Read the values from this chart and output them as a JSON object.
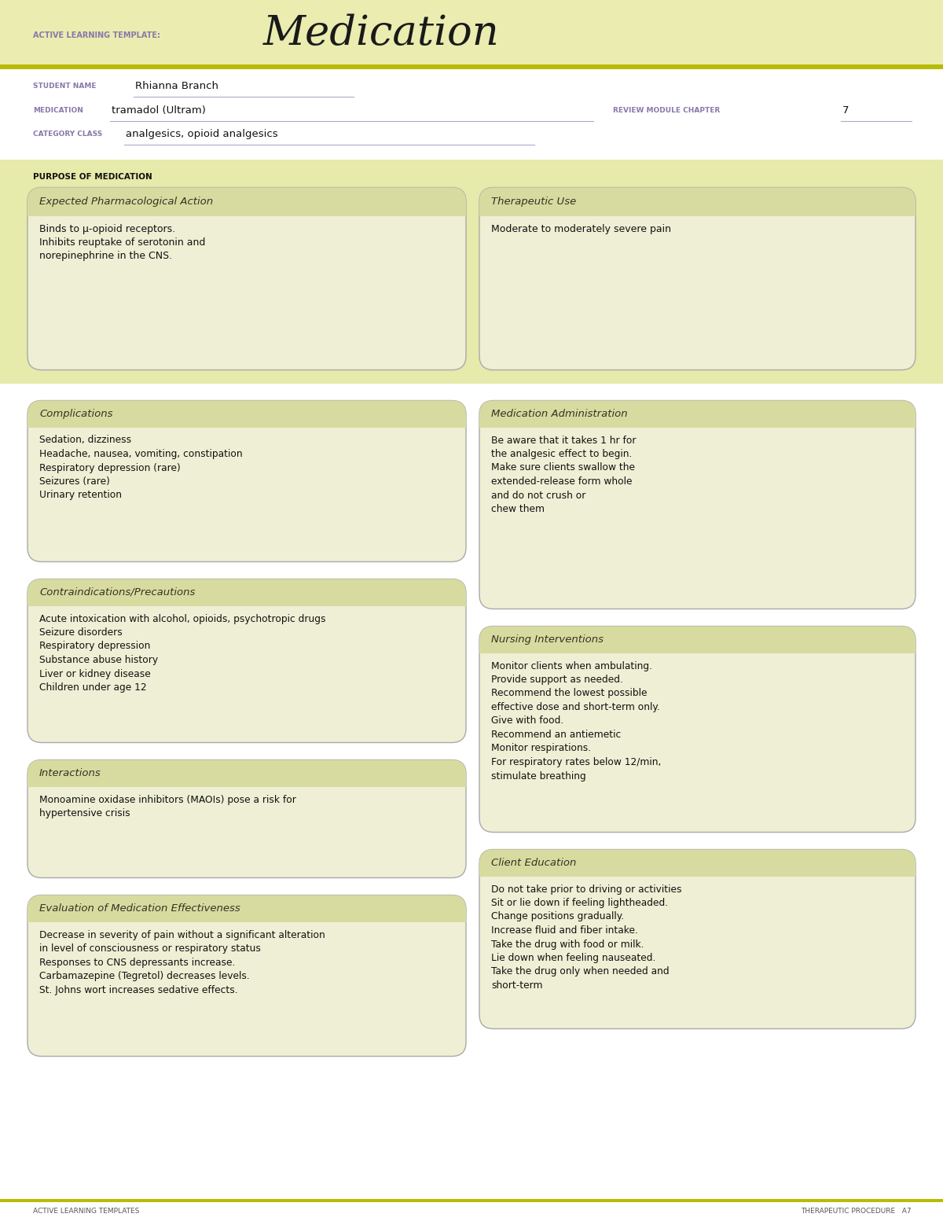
{
  "white": "#ffffff",
  "header_bg": "#eaecb0",
  "stripe_color": "#b8bc00",
  "info_bg": "#ffffff",
  "purpose_bg": "#e8ecaa",
  "box_bg": "#eeefd4",
  "box_border": "#aaaaaa",
  "text_dark": "#1a1a1a",
  "label_purple": "#8878a8",
  "title_text": "Medication",
  "template_label": "ACTIVE LEARNING TEMPLATE:",
  "student_name_label": "STUDENT NAME",
  "student_name": "Rhianna Branch",
  "medication_label": "MEDICATION",
  "medication": "tramadol (Ultram)",
  "review_label": "REVIEW MODULE CHAPTER",
  "review_num": "7",
  "category_label": "CATEGORY CLASS",
  "category": "analgesics, opioid analgesics",
  "purpose_label": "PURPOSE OF MEDICATION",
  "box1_title": "Expected Pharmacological Action",
  "box1_body": "Binds to μ-opioid receptors.\nInhibits reuptake of serotonin and\nnorepinephrine in the CNS.",
  "box2_title": "Therapeutic Use",
  "box2_body": "Moderate to moderately severe pain",
  "box3_title": "Complications",
  "box3_body": "Sedation, dizziness\nHeadache, nausea, vomiting, constipation\nRespiratory depression (rare)\nSeizures (rare)\nUrinary retention",
  "box4_title": "Medication Administration",
  "box4_body": "Be aware that it takes 1 hr for\nthe analgesic effect to begin.\nMake sure clients swallow the\nextended-release form whole\nand do not crush or\nchew them",
  "box5_title": "Contraindications/Precautions",
  "box5_body": "Acute intoxication with alcohol, opioids, psychotropic drugs\nSeizure disorders\nRespiratory depression\nSubstance abuse history\nLiver or kidney disease\nChildren under age 12",
  "box6_title": "Nursing Interventions",
  "box6_body": "Monitor clients when ambulating.\nProvide support as needed.\nRecommend the lowest possible\neffective dose and short-term only.\nGive with food.\nRecommend an antiemetic\nMonitor respirations.\nFor respiratory rates below 12/min,\nstimulate breathing",
  "box7_title": "Interactions",
  "box7_body": "Monoamine oxidase inhibitors (MAOIs) pose a risk for\nhypertensive crisis",
  "box8_title": "Client Education",
  "box8_body": "Do not take prior to driving or activities\nSit or lie down if feeling lightheaded.\nChange positions gradually.\nIncrease fluid and fiber intake.\nTake the drug with food or milk.\nLie down when feeling nauseated.\nTake the drug only when needed and\nshort-term",
  "box9_title": "Evaluation of Medication Effectiveness",
  "box9_body": "Decrease in severity of pain without a significant alteration\nin level of consciousness or respiratory status\nResponses to CNS depressants increase.\nCarbamazepine (Tegretol) decreases levels.\nSt. Johns wort increases sedative effects.",
  "footer_left": "ACTIVE LEARNING TEMPLATES",
  "footer_right": "THERAPEUTIC PROCEDURE   A7"
}
